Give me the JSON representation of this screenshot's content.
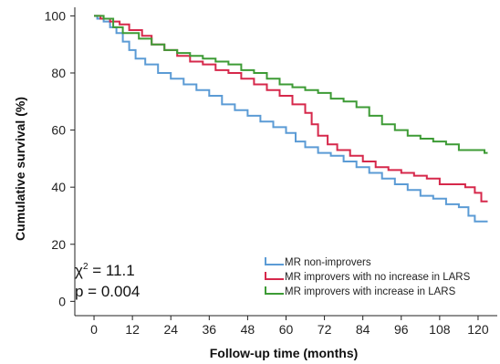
{
  "chart_data": {
    "type": "line",
    "title": "",
    "xlabel": "Follow-up time (months)",
    "ylabel": "Cumulative survival (%)",
    "xlim": [
      -6,
      126
    ],
    "ylim": [
      -5,
      103
    ],
    "x_ticks": [
      "0",
      "12",
      "24",
      "36",
      "48",
      "60",
      "72",
      "84",
      "96",
      "108",
      "120"
    ],
    "y_ticks": [
      "0",
      "20",
      "40",
      "60",
      "80",
      "100"
    ],
    "grid": false,
    "legend_position": "bottom-right",
    "step": true,
    "series": [
      {
        "name": "MR non-improvers",
        "color": "#5b9bd5",
        "points": [
          [
            0,
            100
          ],
          [
            1,
            99
          ],
          [
            3,
            98
          ],
          [
            5,
            96
          ],
          [
            7,
            94
          ],
          [
            9,
            91
          ],
          [
            11,
            88
          ],
          [
            13,
            85
          ],
          [
            16,
            83
          ],
          [
            20,
            80
          ],
          [
            24,
            78
          ],
          [
            28,
            76
          ],
          [
            32,
            74
          ],
          [
            36,
            72
          ],
          [
            40,
            69
          ],
          [
            44,
            67
          ],
          [
            48,
            65
          ],
          [
            52,
            63
          ],
          [
            56,
            61
          ],
          [
            60,
            59
          ],
          [
            63,
            56
          ],
          [
            66,
            54
          ],
          [
            70,
            52
          ],
          [
            74,
            51
          ],
          [
            78,
            49
          ],
          [
            82,
            47
          ],
          [
            86,
            45
          ],
          [
            90,
            43
          ],
          [
            94,
            41
          ],
          [
            98,
            39
          ],
          [
            102,
            37
          ],
          [
            106,
            36
          ],
          [
            110,
            34
          ],
          [
            114,
            33
          ],
          [
            117,
            30
          ],
          [
            119,
            28
          ],
          [
            123,
            28
          ]
        ]
      },
      {
        "name": "MR improvers with no increase in LARS",
        "color": "#d6284b",
        "points": [
          [
            0,
            100
          ],
          [
            2,
            99
          ],
          [
            5,
            98
          ],
          [
            8,
            97
          ],
          [
            11,
            95
          ],
          [
            15,
            93
          ],
          [
            18,
            90
          ],
          [
            22,
            88
          ],
          [
            26,
            86
          ],
          [
            30,
            84
          ],
          [
            34,
            83
          ],
          [
            38,
            81
          ],
          [
            42,
            80
          ],
          [
            46,
            78
          ],
          [
            50,
            76
          ],
          [
            54,
            74
          ],
          [
            58,
            72
          ],
          [
            62,
            69
          ],
          [
            66,
            66
          ],
          [
            68,
            62
          ],
          [
            70,
            58
          ],
          [
            73,
            55
          ],
          [
            76,
            53
          ],
          [
            80,
            51
          ],
          [
            84,
            49
          ],
          [
            88,
            47
          ],
          [
            92,
            46
          ],
          [
            96,
            45
          ],
          [
            100,
            44
          ],
          [
            104,
            43
          ],
          [
            108,
            41
          ],
          [
            112,
            41
          ],
          [
            116,
            40
          ],
          [
            119,
            38
          ],
          [
            121,
            35
          ],
          [
            123,
            35
          ]
        ]
      },
      {
        "name": "MR improvers with increase in LARS",
        "color": "#3d9b35",
        "points": [
          [
            0,
            100
          ],
          [
            3,
            99
          ],
          [
            6,
            96
          ],
          [
            9,
            94
          ],
          [
            14,
            92
          ],
          [
            18,
            90
          ],
          [
            22,
            88
          ],
          [
            26,
            87
          ],
          [
            30,
            86
          ],
          [
            34,
            85
          ],
          [
            38,
            84
          ],
          [
            42,
            83
          ],
          [
            46,
            81
          ],
          [
            50,
            80
          ],
          [
            54,
            78
          ],
          [
            58,
            76
          ],
          [
            62,
            75
          ],
          [
            66,
            74
          ],
          [
            70,
            73
          ],
          [
            74,
            71
          ],
          [
            78,
            70
          ],
          [
            82,
            68
          ],
          [
            86,
            65
          ],
          [
            90,
            62
          ],
          [
            94,
            60
          ],
          [
            98,
            58
          ],
          [
            102,
            57
          ],
          [
            106,
            56
          ],
          [
            110,
            55
          ],
          [
            114,
            53
          ],
          [
            118,
            53
          ],
          [
            122,
            52
          ],
          [
            123,
            52
          ]
        ]
      }
    ],
    "annotations": {
      "chi_line_prefix": "χ",
      "chi_line_sup": "2",
      "chi_line_suffix": " = 11.1",
      "p_line": "p = 0.004"
    }
  }
}
